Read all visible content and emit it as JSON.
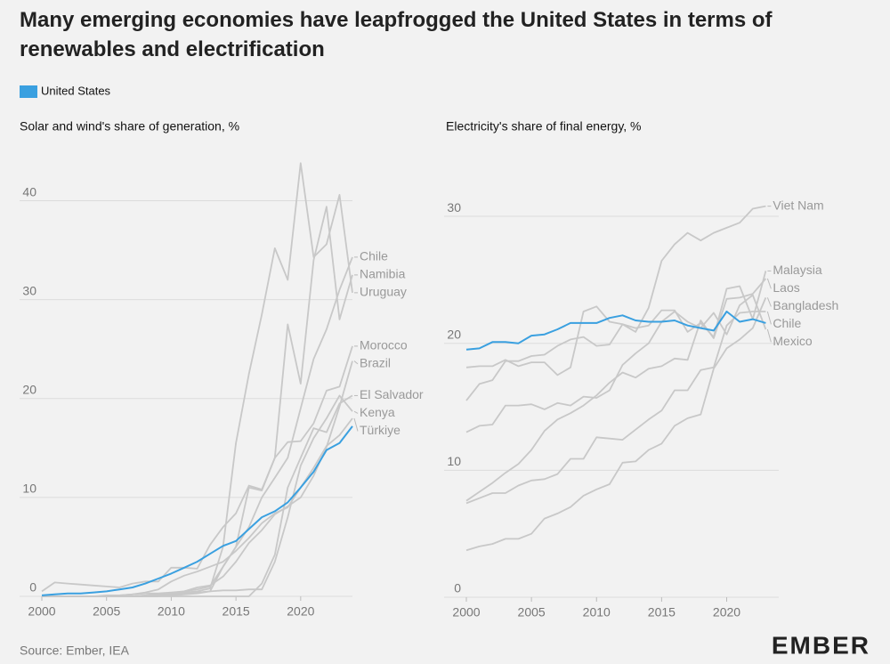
{
  "title": "Many emerging economies have leapfrogged the United States in terms of renewables and electrification",
  "source": "Source: Ember, IEA",
  "logo": "EMBER",
  "chart_data": [
    {
      "type": "line",
      "title": "Solar and wind's share of generation, %",
      "x": [
        2000,
        2001,
        2002,
        2003,
        2004,
        2005,
        2006,
        2007,
        2008,
        2009,
        2010,
        2011,
        2012,
        2013,
        2014,
        2015,
        2016,
        2017,
        2018,
        2019,
        2020,
        2021,
        2022,
        2023,
        2024
      ],
      "xlim": [
        2000,
        2024
      ],
      "xticks": [
        2000,
        2005,
        2010,
        2015,
        2020
      ],
      "ylim": [
        0,
        45
      ],
      "yticks": [
        0,
        10,
        20,
        30,
        40
      ],
      "grid": true,
      "series": [
        {
          "name": "United States",
          "color": "#3aa0e0",
          "values": [
            0.1,
            0.2,
            0.3,
            0.3,
            0.4,
            0.5,
            0.7,
            0.9,
            1.3,
            1.8,
            2.3,
            2.9,
            3.5,
            4.3,
            5.1,
            5.6,
            6.8,
            8.0,
            8.6,
            9.5,
            11.0,
            12.6,
            14.8,
            15.5,
            17.2
          ]
        },
        {
          "name": "Chile",
          "color": "#c8c8c8",
          "values": [
            0,
            0,
            0,
            0,
            0,
            0,
            0,
            0,
            0.1,
            0.2,
            0.3,
            0.5,
            0.7,
            1.0,
            3.0,
            5.0,
            7.0,
            10.0,
            12.0,
            14.0,
            19.0,
            24.0,
            27.0,
            31.0,
            34.3
          ]
        },
        {
          "name": "Namibia",
          "color": "#c8c8c8",
          "values": [
            0,
            0,
            0,
            0,
            0,
            0,
            0,
            0,
            0,
            0,
            0.1,
            0.2,
            0.3,
            0.5,
            3.0,
            5.0,
            11.0,
            10.7,
            14.0,
            27.5,
            21.5,
            34.0,
            39.4,
            28.0,
            32.5
          ]
        },
        {
          "name": "Uruguay",
          "color": "#c8c8c8",
          "values": [
            0,
            0,
            0,
            0,
            0,
            0,
            0,
            0,
            0.1,
            0.2,
            0.3,
            0.4,
            0.5,
            0.8,
            5.0,
            15.5,
            22.5,
            28.5,
            35.2,
            32.0,
            43.8,
            34.3,
            35.6,
            40.6,
            30.7
          ]
        },
        {
          "name": "Morocco",
          "color": "#c8c8c8",
          "values": [
            0.5,
            1.4,
            1.3,
            1.2,
            1.1,
            1.0,
            0.9,
            1.3,
            1.5,
            1.5,
            2.9,
            2.9,
            2.8,
            5.2,
            7.0,
            8.4,
            11.2,
            10.8,
            14.0,
            15.6,
            15.7,
            17.5,
            20.8,
            21.2,
            25.3
          ]
        },
        {
          "name": "Brazil",
          "color": "#c8c8c8",
          "values": [
            0,
            0,
            0,
            0,
            0,
            0,
            0.1,
            0.2,
            0.3,
            0.3,
            0.4,
            0.5,
            0.9,
            1.1,
            2.0,
            3.5,
            5.4,
            6.7,
            8.3,
            9.1,
            10.0,
            12.2,
            15.1,
            19.2,
            23.8
          ]
        },
        {
          "name": "El Salvador",
          "color": "#c8c8c8",
          "values": [
            0,
            0,
            0,
            0,
            0,
            0,
            0,
            0,
            0,
            0,
            0,
            0,
            0,
            0,
            0,
            0,
            0,
            1.3,
            4.2,
            11.0,
            14.0,
            17.0,
            16.6,
            19.5,
            20.3
          ]
        },
        {
          "name": "Kenya",
          "color": "#c8c8c8",
          "values": [
            0,
            0,
            0,
            0,
            0,
            0,
            0,
            0,
            0,
            0.1,
            0.2,
            0.3,
            0.4,
            0.5,
            0.6,
            0.6,
            0.7,
            0.7,
            3.5,
            8.0,
            13.2,
            16.0,
            18.0,
            20.3,
            18.7
          ]
        },
        {
          "name": "Türkiye",
          "color": "#c8c8c8",
          "values": [
            0,
            0,
            0,
            0,
            0,
            0.1,
            0.1,
            0.2,
            0.4,
            0.7,
            1.5,
            2.1,
            2.5,
            3.0,
            3.5,
            4.6,
            5.9,
            7.4,
            8.4,
            9.0,
            11.0,
            13.0,
            15.2,
            16.3,
            18.0
          ]
        }
      ]
    },
    {
      "type": "line",
      "title": "Electricity's share of final energy, %",
      "x": [
        2000,
        2001,
        2002,
        2003,
        2004,
        2005,
        2006,
        2007,
        2008,
        2009,
        2010,
        2011,
        2012,
        2013,
        2014,
        2015,
        2016,
        2017,
        2018,
        2019,
        2020,
        2021,
        2022,
        2023
      ],
      "xlim": [
        2000,
        2024
      ],
      "xticks": [
        2000,
        2005,
        2010,
        2015,
        2020
      ],
      "ylim": [
        0,
        34
      ],
      "yticks": [
        0,
        10,
        20,
        30
      ],
      "grid": true,
      "series": [
        {
          "name": "United States",
          "color": "#3aa0e0",
          "values": [
            19.5,
            19.6,
            20.1,
            20.1,
            20.0,
            20.6,
            20.7,
            21.1,
            21.6,
            21.6,
            21.6,
            22.0,
            22.2,
            21.8,
            21.7,
            21.7,
            21.8,
            21.4,
            21.2,
            21.0,
            22.5,
            21.7,
            21.9,
            21.6
          ]
        },
        {
          "name": "Viet Nam",
          "color": "#c8c8c8",
          "values": [
            18.1,
            18.2,
            18.2,
            18.7,
            18.2,
            18.5,
            18.5,
            17.5,
            18.1,
            22.5,
            22.9,
            21.7,
            21.5,
            20.9,
            22.8,
            26.5,
            27.8,
            28.7,
            28.1,
            28.7,
            29.1,
            29.5,
            30.6,
            30.8
          ]
        },
        {
          "name": "Malaysia",
          "color": "#c8c8c8",
          "values": [
            15.5,
            16.8,
            17.1,
            18.6,
            18.6,
            19.0,
            19.1,
            19.8,
            20.3,
            20.5,
            19.8,
            19.9,
            21.5,
            21.2,
            21.4,
            22.6,
            22.6,
            20.9,
            21.6,
            20.5,
            24.3,
            24.5,
            21.9,
            25.7
          ]
        },
        {
          "name": "Laos",
          "color": "#c8c8c8",
          "values": [
            7.6,
            8.3,
            9.0,
            9.8,
            10.5,
            11.6,
            13.1,
            14.0,
            14.5,
            15.1,
            15.9,
            16.9,
            17.7,
            17.3,
            18.0,
            18.2,
            18.8,
            18.7,
            21.8,
            20.4,
            23.5,
            23.6,
            23.9,
            25.1
          ]
        },
        {
          "name": "Bangladesh",
          "color": "#c8c8c8",
          "values": [
            3.7,
            4.0,
            4.2,
            4.6,
            4.6,
            5.0,
            6.2,
            6.6,
            7.1,
            8.0,
            8.5,
            8.9,
            10.6,
            10.7,
            11.6,
            12.1,
            13.5,
            14.1,
            14.4,
            18.0,
            19.6,
            20.3,
            21.2,
            23.6
          ]
        },
        {
          "name": "Chile",
          "color": "#c8c8c8",
          "values": [
            7.4,
            7.8,
            8.2,
            8.2,
            8.8,
            9.2,
            9.3,
            9.7,
            10.9,
            10.9,
            12.6,
            12.5,
            12.4,
            13.2,
            14.0,
            14.7,
            16.3,
            16.3,
            17.9,
            18.1,
            21.4,
            22.4,
            22.5,
            22.5
          ]
        },
        {
          "name": "Mexico",
          "color": "#c8c8c8",
          "values": [
            13.0,
            13.5,
            13.6,
            15.1,
            15.1,
            15.2,
            14.8,
            15.3,
            15.1,
            15.8,
            15.7,
            16.3,
            18.3,
            19.2,
            20.0,
            21.7,
            22.5,
            21.7,
            21.2,
            22.4,
            20.7,
            23.0,
            23.8,
            21.1
          ]
        }
      ]
    }
  ]
}
